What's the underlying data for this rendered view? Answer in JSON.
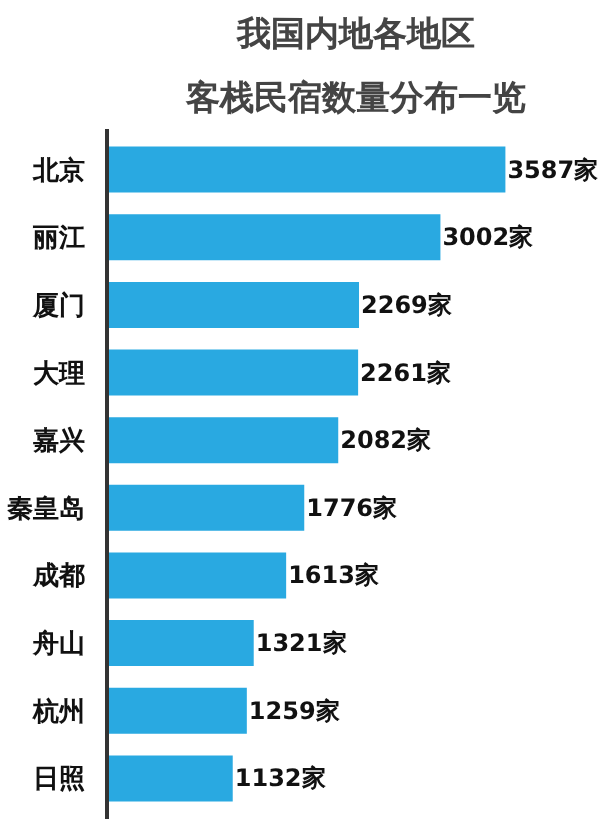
{
  "chart_data": {
    "type": "bar",
    "orientation": "horizontal",
    "title": "我国内地各地区",
    "subtitle": "客栈民宿数量分布一览",
    "categories": [
      "北京",
      "丽江",
      "厦门",
      "大理",
      "嘉兴",
      "秦皇岛",
      "成都",
      "舟山",
      "杭州",
      "日照"
    ],
    "values": [
      3587,
      3002,
      2269,
      2261,
      2082,
      1776,
      1613,
      1321,
      1259,
      1132
    ],
    "value_labels": [
      "3587家",
      "3002家",
      "2269家",
      "2261家",
      "2082家",
      "1776家",
      "1613家",
      "1321家",
      "1259家",
      "1132家"
    ],
    "color": "#29a9e1",
    "grid": false
  }
}
